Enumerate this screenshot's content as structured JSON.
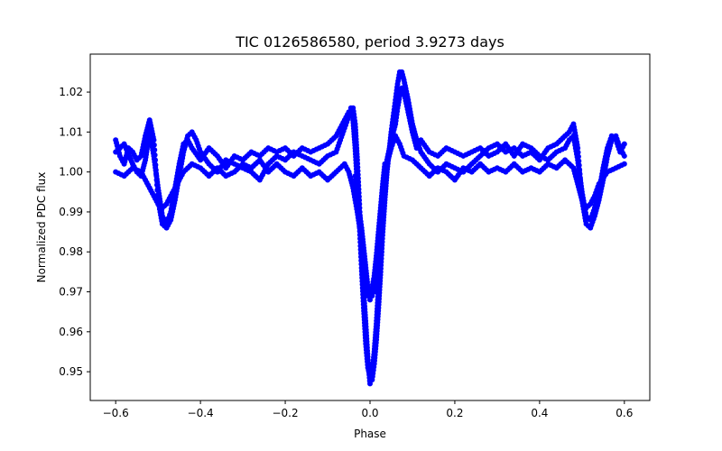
{
  "chart_data": {
    "type": "scatter",
    "title": "TIC 0126586580, period 3.9273 days",
    "xlabel": "Phase",
    "ylabel": "Normalized PDC flux",
    "xlim": [
      -0.66,
      0.66
    ],
    "ylim": [
      0.9428,
      1.0295
    ],
    "xticks": [
      -0.6,
      -0.4,
      -0.2,
      0.0,
      0.2,
      0.4,
      0.6
    ],
    "xtick_labels": [
      "−0.6",
      "−0.4",
      "−0.2",
      "0.0",
      "0.2",
      "0.4",
      "0.6"
    ],
    "yticks": [
      0.95,
      0.96,
      0.97,
      0.98,
      0.99,
      1.0,
      1.01,
      1.02
    ],
    "ytick_labels": [
      "0.95",
      "0.96",
      "0.97",
      "0.98",
      "0.99",
      "1.00",
      "1.01",
      "1.02"
    ],
    "grid": false,
    "marker_color": "#0000ff",
    "series": [
      {
        "values": [
          [
            -0.6,
            1.008
          ],
          [
            -0.59,
            1.004
          ],
          [
            -0.58,
            1.002
          ],
          [
            -0.57,
            1.006
          ],
          [
            -0.56,
            1.005
          ],
          [
            -0.55,
            1.003
          ],
          [
            -0.54,
            1.004
          ],
          [
            -0.53,
            1.009
          ],
          [
            -0.52,
            1.013
          ],
          [
            -0.51,
            1.008
          ],
          [
            -0.5,
            0.993
          ],
          [
            -0.49,
            0.987
          ],
          [
            -0.48,
            0.986
          ],
          [
            -0.47,
            0.988
          ],
          [
            -0.46,
            0.993
          ],
          [
            -0.45,
            0.999
          ],
          [
            -0.44,
            1.005
          ],
          [
            -0.43,
            1.009
          ],
          [
            -0.42,
            1.01
          ],
          [
            -0.41,
            1.008
          ],
          [
            -0.4,
            1.005
          ],
          [
            -0.38,
            1.002
          ],
          [
            -0.36,
            1.0
          ],
          [
            -0.34,
            1.003
          ],
          [
            -0.32,
            1.002
          ],
          [
            -0.3,
            1.001
          ],
          [
            -0.28,
            1.0
          ],
          [
            -0.26,
            0.998
          ],
          [
            -0.24,
            1.002
          ],
          [
            -0.22,
            1.004
          ],
          [
            -0.2,
            1.003
          ],
          [
            -0.18,
            1.005
          ],
          [
            -0.16,
            1.004
          ],
          [
            -0.14,
            1.003
          ],
          [
            -0.12,
            1.002
          ],
          [
            -0.1,
            1.004
          ],
          [
            -0.08,
            1.005
          ],
          [
            -0.07,
            1.008
          ],
          [
            -0.06,
            1.011
          ],
          [
            -0.05,
            1.014
          ],
          [
            -0.04,
            1.016
          ],
          [
            -0.035,
            1.012
          ],
          [
            -0.03,
            1.003
          ],
          [
            -0.025,
            0.992
          ],
          [
            -0.02,
            0.98
          ],
          [
            -0.015,
            0.97
          ],
          [
            -0.01,
            0.962
          ],
          [
            -0.005,
            0.953
          ],
          [
            0.0,
            0.947
          ],
          [
            0.005,
            0.948
          ],
          [
            0.01,
            0.952
          ],
          [
            0.015,
            0.958
          ],
          [
            0.02,
            0.966
          ],
          [
            0.025,
            0.975
          ],
          [
            0.03,
            0.985
          ],
          [
            0.035,
            0.993
          ],
          [
            0.04,
            1.0
          ],
          [
            0.045,
            1.005
          ],
          [
            0.05,
            1.01
          ],
          [
            0.055,
            1.014
          ],
          [
            0.06,
            1.018
          ],
          [
            0.065,
            1.022
          ],
          [
            0.07,
            1.025
          ],
          [
            0.075,
            1.025
          ],
          [
            0.08,
            1.023
          ],
          [
            0.09,
            1.018
          ],
          [
            0.1,
            1.012
          ],
          [
            0.11,
            1.008
          ],
          [
            0.12,
            1.005
          ],
          [
            0.14,
            1.002
          ],
          [
            0.16,
            1.0
          ],
          [
            0.18,
            1.002
          ],
          [
            0.2,
            1.001
          ],
          [
            0.22,
            1.0
          ],
          [
            0.24,
            1.002
          ],
          [
            0.26,
            1.004
          ],
          [
            0.28,
            1.006
          ],
          [
            0.3,
            1.007
          ],
          [
            0.32,
            1.005
          ],
          [
            0.34,
            1.006
          ],
          [
            0.36,
            1.004
          ],
          [
            0.38,
            1.005
          ],
          [
            0.4,
            1.003
          ],
          [
            0.42,
            1.006
          ],
          [
            0.44,
            1.007
          ],
          [
            0.46,
            1.009
          ],
          [
            0.47,
            1.01
          ],
          [
            0.48,
            1.012
          ],
          [
            0.49,
            1.006
          ],
          [
            0.5,
            0.993
          ],
          [
            0.51,
            0.987
          ],
          [
            0.52,
            0.986
          ],
          [
            0.53,
            0.989
          ],
          [
            0.54,
            0.993
          ],
          [
            0.55,
            0.998
          ],
          [
            0.56,
            1.004
          ],
          [
            0.57,
            1.008
          ],
          [
            0.58,
            1.009
          ],
          [
            0.59,
            1.006
          ],
          [
            0.6,
            1.004
          ]
        ]
      },
      {
        "values": [
          [
            -0.6,
            1.0
          ],
          [
            -0.58,
            0.999
          ],
          [
            -0.56,
            1.001
          ],
          [
            -0.54,
            1.0
          ],
          [
            -0.53,
            0.998
          ],
          [
            -0.52,
            0.996
          ],
          [
            -0.51,
            0.994
          ],
          [
            -0.5,
            0.992
          ],
          [
            -0.49,
            0.991
          ],
          [
            -0.48,
            0.992
          ],
          [
            -0.46,
            0.996
          ],
          [
            -0.44,
            1.0
          ],
          [
            -0.42,
            1.002
          ],
          [
            -0.4,
            1.001
          ],
          [
            -0.38,
            0.999
          ],
          [
            -0.36,
            1.001
          ],
          [
            -0.34,
            0.999
          ],
          [
            -0.32,
            1.0
          ],
          [
            -0.3,
            1.002
          ],
          [
            -0.28,
            1.001
          ],
          [
            -0.26,
            1.003
          ],
          [
            -0.24,
            1.0
          ],
          [
            -0.22,
            1.002
          ],
          [
            -0.2,
            1.0
          ],
          [
            -0.18,
            0.999
          ],
          [
            -0.16,
            1.001
          ],
          [
            -0.14,
            0.999
          ],
          [
            -0.12,
            1.0
          ],
          [
            -0.1,
            0.998
          ],
          [
            -0.08,
            1.0
          ],
          [
            -0.06,
            1.002
          ],
          [
            -0.05,
            1.0
          ],
          [
            -0.04,
            0.996
          ],
          [
            -0.03,
            0.99
          ],
          [
            -0.02,
            0.983
          ],
          [
            -0.015,
            0.977
          ],
          [
            -0.01,
            0.972
          ],
          [
            -0.005,
            0.969
          ],
          [
            0.0,
            0.968
          ],
          [
            0.005,
            0.969
          ],
          [
            0.01,
            0.97
          ],
          [
            0.015,
            0.972
          ],
          [
            0.02,
            0.976
          ],
          [
            0.025,
            0.982
          ],
          [
            0.03,
            0.99
          ],
          [
            0.035,
            0.997
          ],
          [
            0.04,
            1.002
          ],
          [
            0.05,
            1.006
          ],
          [
            0.06,
            1.009
          ],
          [
            0.07,
            1.007
          ],
          [
            0.08,
            1.004
          ],
          [
            0.1,
            1.003
          ],
          [
            0.12,
            1.001
          ],
          [
            0.14,
            0.999
          ],
          [
            0.16,
            1.001
          ],
          [
            0.18,
            1.0
          ],
          [
            0.2,
            0.998
          ],
          [
            0.22,
            1.001
          ],
          [
            0.24,
            1.0
          ],
          [
            0.26,
            1.002
          ],
          [
            0.28,
            1.0
          ],
          [
            0.3,
            1.001
          ],
          [
            0.32,
            1.0
          ],
          [
            0.34,
            1.002
          ],
          [
            0.36,
            1.0
          ],
          [
            0.38,
            1.001
          ],
          [
            0.4,
            1.0
          ],
          [
            0.42,
            1.002
          ],
          [
            0.44,
            1.001
          ],
          [
            0.46,
            1.003
          ],
          [
            0.48,
            1.001
          ],
          [
            0.49,
            0.997
          ],
          [
            0.5,
            0.993
          ],
          [
            0.51,
            0.991
          ],
          [
            0.52,
            0.992
          ],
          [
            0.53,
            0.994
          ],
          [
            0.54,
            0.997
          ],
          [
            0.56,
            1.0
          ],
          [
            0.58,
            1.001
          ],
          [
            0.6,
            1.002
          ]
        ]
      },
      {
        "values": [
          [
            -0.6,
            1.005
          ],
          [
            -0.58,
            1.007
          ],
          [
            -0.56,
            1.002
          ],
          [
            -0.55,
            1.0
          ],
          [
            -0.54,
            0.999
          ],
          [
            -0.53,
            1.003
          ],
          [
            -0.52,
            1.01
          ],
          [
            -0.51,
            1.004
          ],
          [
            -0.5,
            0.996
          ],
          [
            -0.49,
            0.989
          ],
          [
            -0.48,
            0.987
          ],
          [
            -0.47,
            0.99
          ],
          [
            -0.46,
            0.996
          ],
          [
            -0.45,
            1.002
          ],
          [
            -0.44,
            1.007
          ],
          [
            -0.43,
            1.008
          ],
          [
            -0.42,
            1.006
          ],
          [
            -0.4,
            1.003
          ],
          [
            -0.38,
            1.006
          ],
          [
            -0.36,
            1.004
          ],
          [
            -0.34,
            1.001
          ],
          [
            -0.32,
            1.004
          ],
          [
            -0.3,
            1.003
          ],
          [
            -0.28,
            1.005
          ],
          [
            -0.26,
            1.004
          ],
          [
            -0.24,
            1.006
          ],
          [
            -0.22,
            1.005
          ],
          [
            -0.2,
            1.006
          ],
          [
            -0.18,
            1.004
          ],
          [
            -0.16,
            1.006
          ],
          [
            -0.14,
            1.005
          ],
          [
            -0.12,
            1.006
          ],
          [
            -0.1,
            1.007
          ],
          [
            -0.08,
            1.009
          ],
          [
            -0.07,
            1.011
          ],
          [
            -0.06,
            1.013
          ],
          [
            -0.05,
            1.015
          ],
          [
            -0.045,
            1.016
          ],
          [
            -0.04,
            1.013
          ],
          [
            -0.035,
            1.006
          ],
          [
            -0.03,
            0.997
          ],
          [
            -0.025,
            0.987
          ],
          [
            -0.02,
            0.976
          ],
          [
            -0.015,
            0.966
          ],
          [
            -0.01,
            0.957
          ],
          [
            -0.005,
            0.951
          ],
          [
            0.0,
            0.949
          ],
          [
            0.005,
            0.95
          ],
          [
            0.01,
            0.955
          ],
          [
            0.015,
            0.962
          ],
          [
            0.02,
            0.971
          ],
          [
            0.025,
            0.98
          ],
          [
            0.03,
            0.989
          ],
          [
            0.035,
            0.996
          ],
          [
            0.04,
            1.003
          ],
          [
            0.05,
            1.008
          ],
          [
            0.06,
            1.012
          ],
          [
            0.065,
            1.016
          ],
          [
            0.07,
            1.019
          ],
          [
            0.075,
            1.021
          ],
          [
            0.08,
            1.02
          ],
          [
            0.09,
            1.015
          ],
          [
            0.1,
            1.01
          ],
          [
            0.11,
            1.006
          ],
          [
            0.12,
            1.008
          ],
          [
            0.14,
            1.005
          ],
          [
            0.16,
            1.004
          ],
          [
            0.18,
            1.006
          ],
          [
            0.2,
            1.005
          ],
          [
            0.22,
            1.004
          ],
          [
            0.24,
            1.005
          ],
          [
            0.26,
            1.006
          ],
          [
            0.28,
            1.004
          ],
          [
            0.3,
            1.005
          ],
          [
            0.32,
            1.007
          ],
          [
            0.34,
            1.004
          ],
          [
            0.36,
            1.007
          ],
          [
            0.38,
            1.006
          ],
          [
            0.4,
            1.004
          ],
          [
            0.42,
            1.003
          ],
          [
            0.44,
            1.005
          ],
          [
            0.46,
            1.006
          ],
          [
            0.47,
            1.008
          ],
          [
            0.48,
            1.009
          ],
          [
            0.49,
            1.003
          ],
          [
            0.5,
            0.995
          ],
          [
            0.51,
            0.989
          ],
          [
            0.52,
            0.988
          ],
          [
            0.53,
            0.991
          ],
          [
            0.54,
            0.995
          ],
          [
            0.55,
            1.001
          ],
          [
            0.56,
            1.006
          ],
          [
            0.57,
            1.009
          ],
          [
            0.58,
            1.008
          ],
          [
            0.59,
            1.005
          ],
          [
            0.6,
            1.007
          ]
        ]
      },
      {
        "values": [
          [
            -0.035,
            0.999
          ],
          [
            -0.03,
            0.995
          ],
          [
            -0.025,
            0.99
          ],
          [
            -0.02,
            0.986
          ],
          [
            -0.015,
            0.981
          ],
          [
            -0.01,
            0.976
          ],
          [
            -0.005,
            0.971
          ],
          [
            0.0,
            0.97
          ],
          [
            0.005,
            0.971
          ],
          [
            0.01,
            0.974
          ],
          [
            0.015,
            0.979
          ],
          [
            0.02,
            0.985
          ],
          [
            0.025,
            0.991
          ],
          [
            0.03,
            0.997
          ],
          [
            0.035,
            1.002
          ]
        ]
      }
    ]
  }
}
